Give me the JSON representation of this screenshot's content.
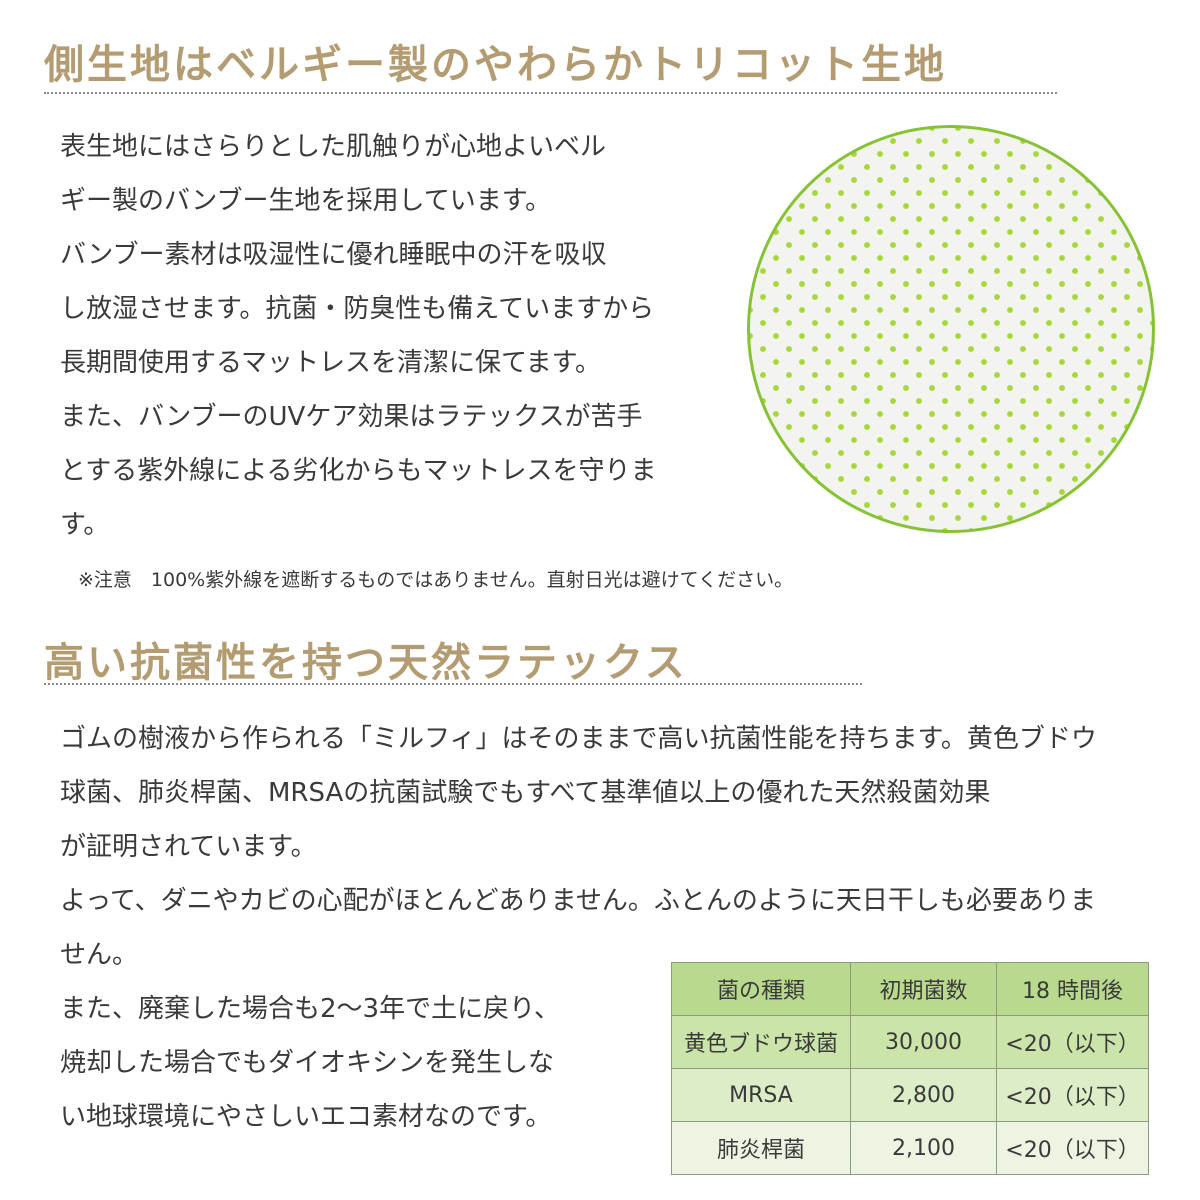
{
  "section1": {
    "heading": "側生地はベルギー製のやわらかトリコット生地",
    "lines": [
      "表生地にはさらりとした肌触りが心地よいベル",
      "ギー製のバンブー生地を採用しています。",
      "バンブー素材は吸湿性に優れ睡眠中の汗を吸収",
      "し放湿させます。抗菌・防臭性も備えていますから",
      "長期間使用するマットレスを清潔に保てます。",
      "また、バンブーのUVケア効果はラテックスが苦手",
      "とする紫外線による劣化からもマットレスを守りま",
      "す。"
    ],
    "note": "※注意　100%紫外線を遮断するものではありません。直射日光は避けてください。",
    "image": "green-dotted-fabric-swatch"
  },
  "section2": {
    "heading": "高い抗菌性を持つ天然ラテックス",
    "lines_full": [
      "ゴムの樹液から作られる「ミルフィ」はそのままで高い抗菌性能を持ちます。黄色ブドウ",
      "球菌、肺炎桿菌、MRSAの抗菌試験でもすべて基準値以上の優れた天然殺菌効果",
      "が証明されています。",
      "よって、ダニやカビの心配がほとんどありません。ふとんのように天日干しも必要ありま",
      "せん。"
    ],
    "lines_left": [
      "また、廃棄した場合も2～3年で土に戻り、",
      "焼却した場合でもダイオキシンを発生しな",
      "い地球環境にやさしいエコ素材なのです。"
    ]
  },
  "table": {
    "headers": [
      "菌の種類",
      "初期菌数",
      "18 時間後"
    ],
    "rows": [
      [
        "黄色ブドウ球菌",
        "30,000",
        "<20（以下）"
      ],
      [
        "MRSA",
        "2,800",
        "<20（以下）"
      ],
      [
        "肺炎桿菌",
        "2,100",
        "<20（以下）"
      ]
    ]
  },
  "colors": {
    "heading": "#b39c72",
    "accent_green": "#86c234",
    "table_header": "#b9da8e"
  }
}
